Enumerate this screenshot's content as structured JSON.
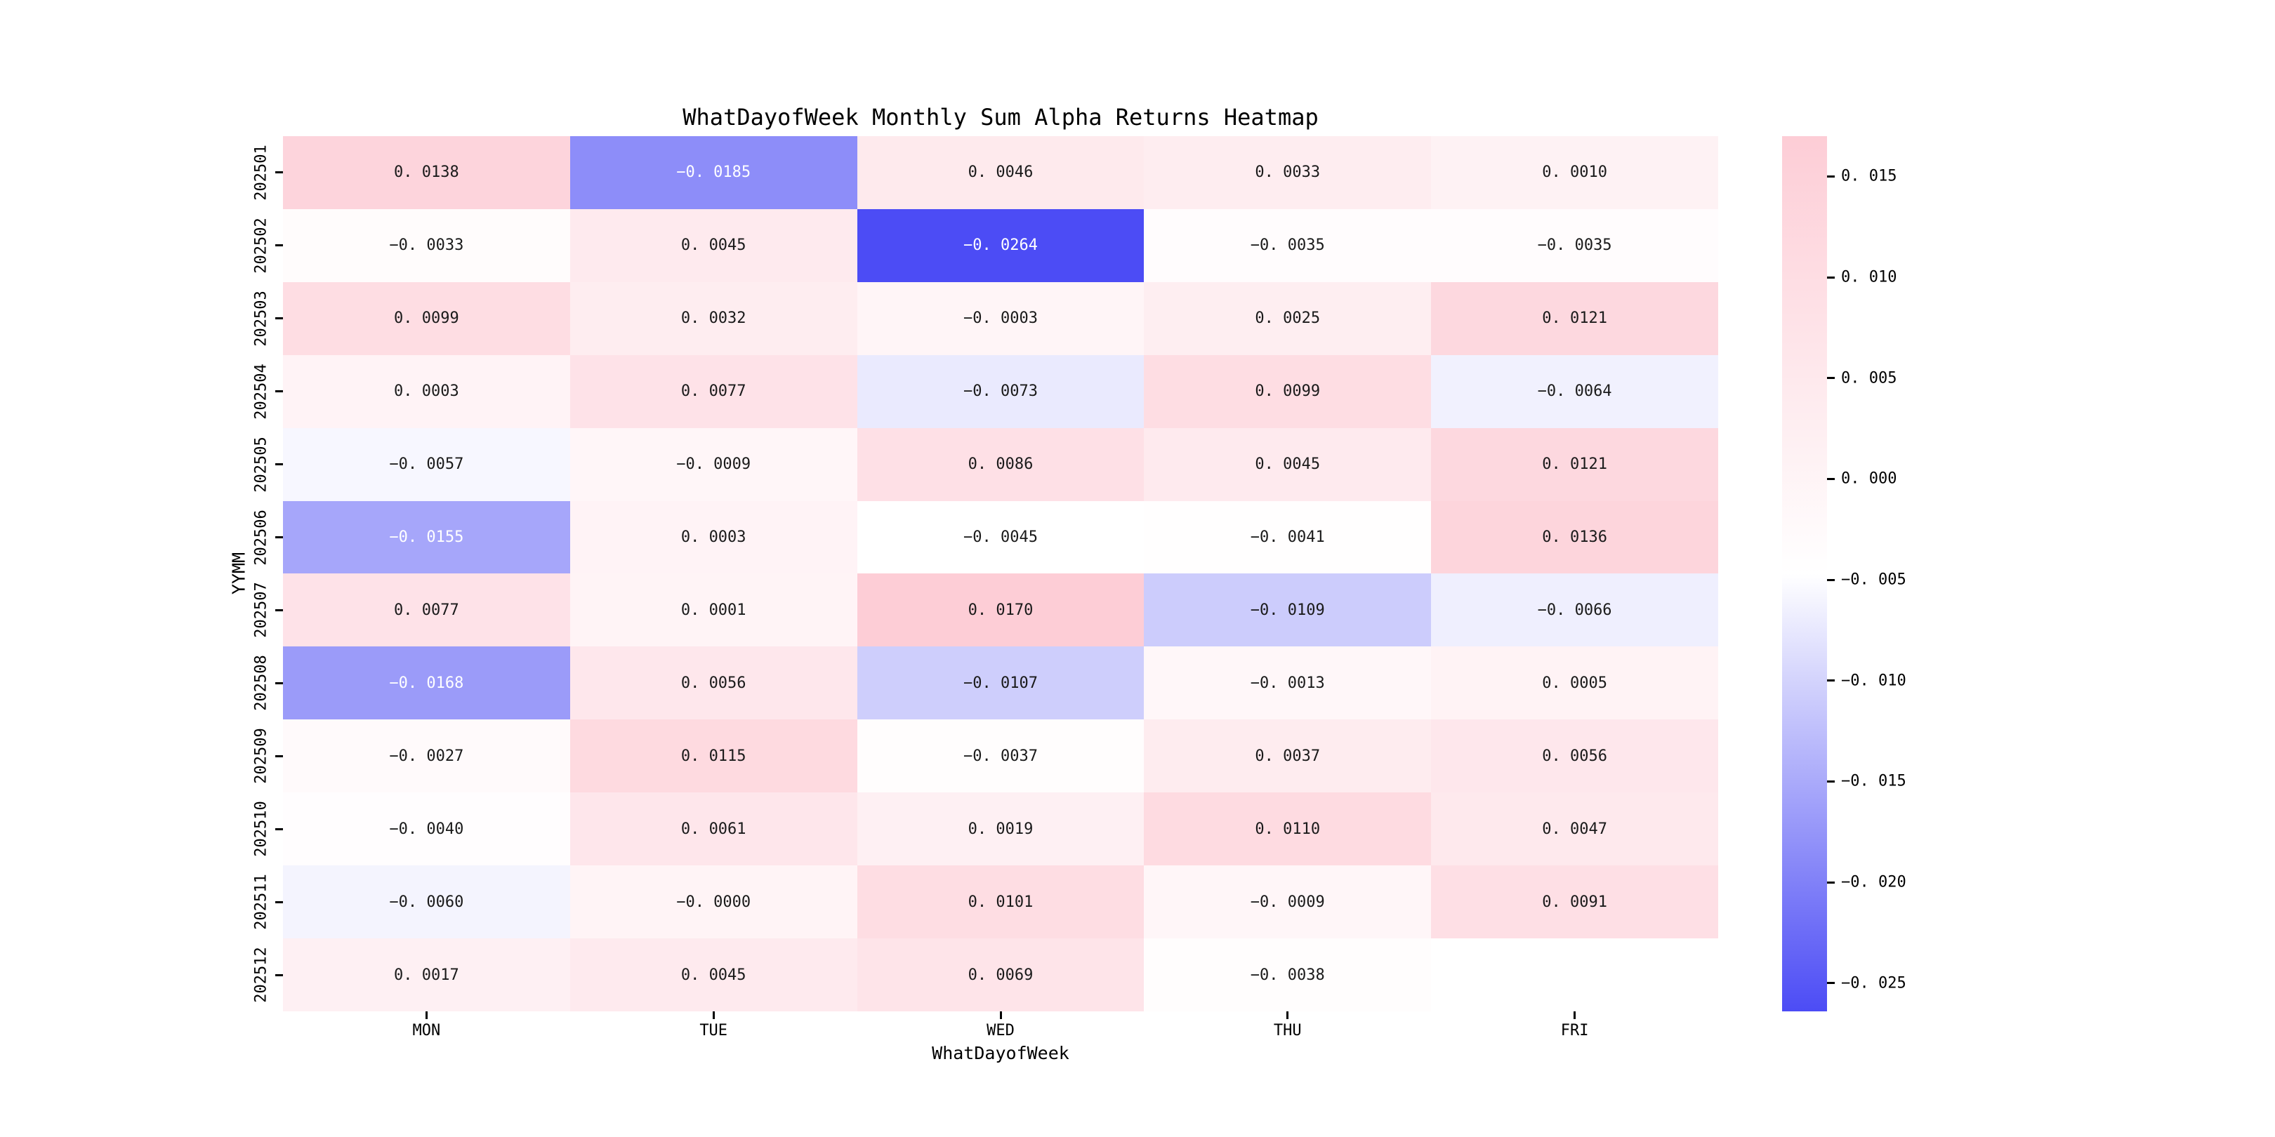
{
  "figure": {
    "title": "WhatDayofWeek Monthly Sum Alpha Returns Heatmap"
  },
  "axes": {
    "xlabel": "WhatDayofWeek",
    "ylabel": "YYMM"
  },
  "colors": {
    "background": "#ffffff",
    "cell_text_dark": "#1a1a1a",
    "cell_text_light": "#ffffff",
    "axis_text": "#000000",
    "tick_mark": "#000000"
  },
  "chart_data": {
    "type": "heatmap",
    "title": "WhatDayofWeek Monthly Sum Alpha Returns Heatmap",
    "xlabel": "WhatDayofWeek",
    "ylabel": "YYMM",
    "columns": [
      "MON",
      "TUE",
      "WED",
      "THU",
      "FRI"
    ],
    "rows": [
      "202501",
      "202502",
      "202503",
      "202504",
      "202505",
      "202506",
      "202507",
      "202508",
      "202509",
      "202510",
      "202511",
      "202512"
    ],
    "values": [
      [
        0.0138,
        -0.0185,
        0.0046,
        0.0033,
        0.001
      ],
      [
        -0.0033,
        0.0045,
        -0.0264,
        -0.0035,
        -0.0035
      ],
      [
        0.0099,
        0.0032,
        -0.0003,
        0.0025,
        0.0121
      ],
      [
        0.0003,
        0.0077,
        -0.0073,
        0.0099,
        -0.0064
      ],
      [
        -0.0057,
        -0.0009,
        0.0086,
        0.0045,
        0.0121
      ],
      [
        -0.0155,
        0.0003,
        -0.0045,
        -0.0041,
        0.0136
      ],
      [
        0.0077,
        0.0001,
        0.017,
        -0.0109,
        -0.0066
      ],
      [
        -0.0168,
        0.0056,
        -0.0107,
        -0.0013,
        0.0005
      ],
      [
        -0.0027,
        0.0115,
        -0.0037,
        0.0037,
        0.0056
      ],
      [
        -0.004,
        0.0061,
        0.0019,
        0.011,
        0.0047
      ],
      [
        -0.006,
        -0.0,
        0.0101,
        -0.0009,
        0.0091
      ],
      [
        0.0017,
        0.0045,
        0.0069,
        -0.0038,
        null
      ]
    ],
    "cell_labels": [
      [
        "0. 0138",
        "−0. 0185",
        "0. 0046",
        "0. 0033",
        "0. 0010"
      ],
      [
        "−0. 0033",
        "0. 0045",
        "−0. 0264",
        "−0. 0035",
        "−0. 0035"
      ],
      [
        "0. 0099",
        "0. 0032",
        "−0. 0003",
        "0. 0025",
        "0. 0121"
      ],
      [
        "0. 0003",
        "0. 0077",
        "−0. 0073",
        "0. 0099",
        "−0. 0064"
      ],
      [
        "−0. 0057",
        "−0. 0009",
        "0. 0086",
        "0. 0045",
        "0. 0121"
      ],
      [
        "−0. 0155",
        "0. 0003",
        "−0. 0045",
        "−0. 0041",
        "0. 0136"
      ],
      [
        "0. 0077",
        "0. 0001",
        "0. 0170",
        "−0. 0109",
        "−0. 0066"
      ],
      [
        "−0. 0168",
        "0. 0056",
        "−0. 0107",
        "−0. 0013",
        "0. 0005"
      ],
      [
        "−0. 0027",
        "0. 0115",
        "−0. 0037",
        "0. 0037",
        "0. 0056"
      ],
      [
        "−0. 0040",
        "0. 0061",
        "0. 0019",
        "0. 0110",
        "0. 0047"
      ],
      [
        "−0. 0060",
        "−0. 0000",
        "0. 0101",
        "−0. 0009",
        "0. 0091"
      ],
      [
        "0. 0017",
        "0. 0045",
        "0. 0069",
        "−0. 0038",
        ""
      ]
    ],
    "vmin": -0.0264,
    "vmax": 0.017,
    "colormap": {
      "low": "#4c4cf5",
      "mid": "#ffffff",
      "high": "#fdcdd6"
    },
    "text_threshold": 0.3,
    "legend_position": "right",
    "colorbar": {
      "tick_values": [
        0.015,
        0.01,
        0.005,
        0.0,
        -0.005,
        -0.01,
        -0.015,
        -0.02,
        -0.025
      ],
      "tick_labels": [
        "0. 015",
        "0. 010",
        "0. 005",
        "0. 000",
        "−0. 005",
        "−0. 010",
        "−0. 015",
        "−0. 020",
        "−0. 025"
      ]
    }
  }
}
